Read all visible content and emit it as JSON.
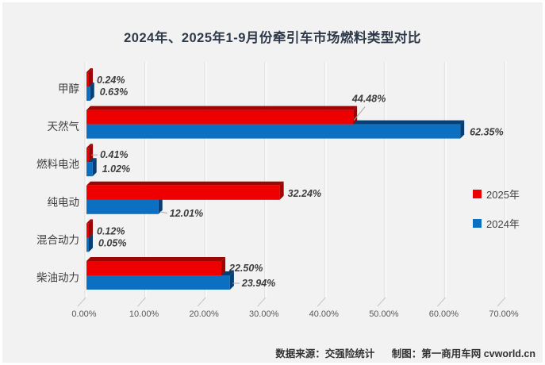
{
  "page": {
    "background": "#ffffff",
    "panel_background": "#f2f2f2"
  },
  "chart_data": {
    "type": "bar",
    "orientation": "horizontal",
    "style": "3d",
    "title": "2024年、2025年1-9月份牵引车市场燃料类型对比",
    "categories": [
      "甲醇",
      "天然气",
      "燃料电池",
      "纯电动",
      "混合动力",
      "柴油动力"
    ],
    "series": [
      {
        "name": "2025年",
        "color": "#ee0000",
        "color_dark": "#9e0505",
        "values": [
          0.24,
          44.48,
          0.41,
          32.24,
          0.12,
          22.5
        ],
        "labels": [
          "0.24%",
          "44.48%",
          "0.41%",
          "32.24%",
          "0.12%",
          "22.50%"
        ]
      },
      {
        "name": "2024年",
        "color": "#0b6fc2",
        "color_dark": "#063f75",
        "values": [
          0.63,
          62.35,
          1.02,
          12.01,
          0.05,
          23.94
        ],
        "labels": [
          "0.63%",
          "62.35%",
          "1.02%",
          "12.01%",
          "0.05%",
          "23.94%"
        ]
      }
    ],
    "x_axis": {
      "ticks": [
        "0.00%",
        "10.00%",
        "20.00%",
        "30.00%",
        "40.00%",
        "50.00%",
        "60.00%",
        "70.00%"
      ],
      "min": 0,
      "max": 70,
      "unit": "percent"
    },
    "grid": true,
    "legend_position": "right"
  },
  "footer": {
    "source": "数据来源：交强险统计",
    "credit": "制图：第一商用车网 cvworld.cn"
  }
}
